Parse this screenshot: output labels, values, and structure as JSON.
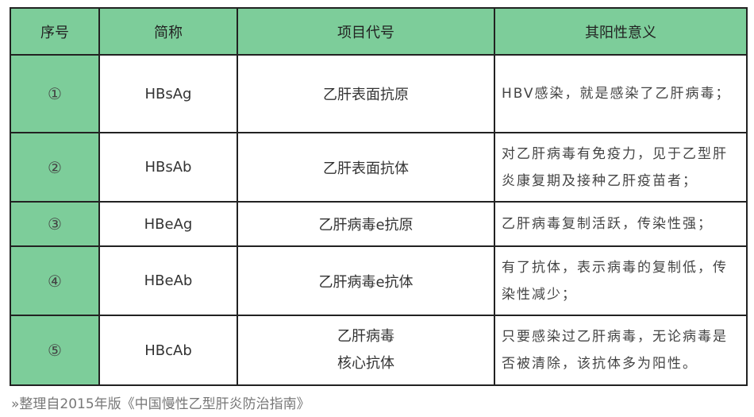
{
  "headers": [
    "序号",
    "简称",
    "项目代号",
    "其阳性意义"
  ],
  "rows": [
    {
      "index": "①",
      "abbr": "HBsAg",
      "name": "乙肝表面抗原",
      "meaning": "HBV感染，就是感染了乙肝病毒；"
    },
    {
      "index": "②",
      "abbr": "HBsAb",
      "name": "乙肝表面抗体",
      "meaning": "对乙肝病毒有免疫力，见于乙型肝炎康复期及接种乙肝疫苗者；"
    },
    {
      "index": "③",
      "abbr": "HBeAg",
      "name": "乙肝病毒e抗原",
      "meaning": "乙肝病毒复制活跃，传染性强；"
    },
    {
      "index": "④",
      "abbr": "HBeAb",
      "name": "乙肝病毒e抗体",
      "meaning": "有了抗体，表示病毒的复制低，传染性减少；"
    },
    {
      "index": "⑤",
      "abbr": "HBcAb",
      "name": "乙肝病毒\n核心抗体",
      "meaning": "只要感染过乙肝病毒，无论病毒是否被清除，该抗体多为阳性。"
    }
  ],
  "caption": "»整理自2015年版《中国慢性乙型肝炎防治指南》",
  "colors": {
    "header": "#7dcd9a",
    "border": "#222222"
  }
}
